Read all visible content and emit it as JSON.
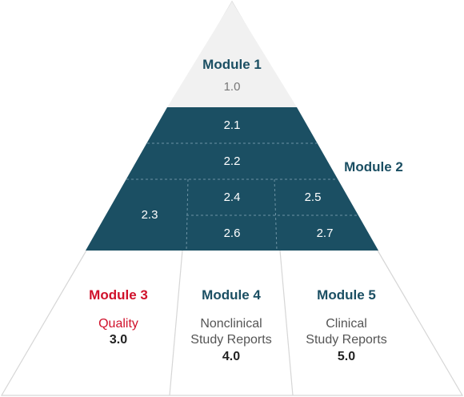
{
  "colors": {
    "module1_fill": "#f1f1f1",
    "module2_fill": "#1b4f63",
    "module2_text": "#1b4f63",
    "module3_accent": "#d0112b",
    "outline": "#d6d6d6",
    "lower_fill": "#ffffff"
  },
  "module1": {
    "title": "Module 1",
    "number": "1.0"
  },
  "module2": {
    "title": "Module 2",
    "sections": [
      "2.1",
      "2.2",
      "2.3",
      "2.4",
      "2.5",
      "2.6",
      "2.7"
    ]
  },
  "module3": {
    "title": "Module 3",
    "desc_line1": "Quality",
    "number": "3.0"
  },
  "module4": {
    "title": "Module 4",
    "desc_line1": "Nonclinical",
    "desc_line2": "Study Reports",
    "number": "4.0"
  },
  "module5": {
    "title": "Module 5",
    "desc_line1": "Clinical",
    "desc_line2": "Study Reports",
    "number": "5.0"
  }
}
